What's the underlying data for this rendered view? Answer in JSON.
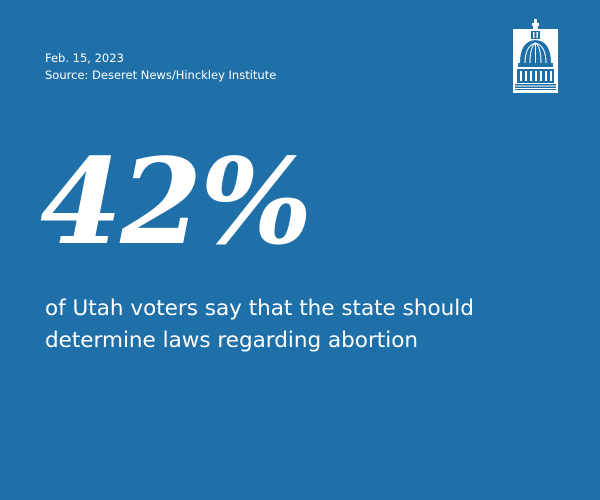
{
  "colors": {
    "background": "#1f6fa8",
    "text": "#ffffff"
  },
  "meta": {
    "date": "Feb. 15, 2023",
    "source": "Source: Deseret News/Hinckley Institute"
  },
  "logo": {
    "icon": "capitol-dome-icon"
  },
  "stat": {
    "value": "42%",
    "statement": "of Utah voters say that the state should determine laws regarding abortion"
  }
}
